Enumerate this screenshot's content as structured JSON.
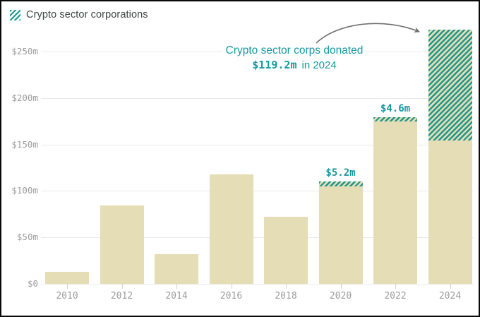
{
  "legend": {
    "label": "Crypto sector corporations",
    "swatch_style": "teal-diagonal-hatch",
    "swatch_color": "#1b978f"
  },
  "colors": {
    "bar_fill": "#e4ddb5",
    "hatch_teal": "#1e968c",
    "label_teal": "#14989d",
    "axis_text": "#9c9c9c",
    "title_text": "#3f4545",
    "gridline": "#e9e9ec",
    "arrow": "#6e6e6e",
    "frame_border": "#0a0a0a"
  },
  "annotation": {
    "line1": "Crypto sector corps donated",
    "amount": "$119.2m",
    "suffix": "in 2024"
  },
  "bar_labels": [
    {
      "year": "2020",
      "text": "$5.2m"
    },
    {
      "year": "2022",
      "text": "$4.6m"
    }
  ],
  "y_axis": {
    "ticks": [
      "$250m",
      "$200m",
      "$150m",
      "$100m",
      "$50m",
      "$0"
    ],
    "values": [
      250,
      200,
      150,
      100,
      50,
      0
    ]
  },
  "x_axis": {
    "ticks": [
      "2010",
      "2012",
      "2014",
      "2016",
      "2018",
      "2020",
      "2022",
      "2024"
    ]
  },
  "chart_data": {
    "type": "bar",
    "stacked": true,
    "title": "Crypto sector corporations",
    "categories": [
      "2010",
      "2012",
      "2014",
      "2016",
      "2018",
      "2020",
      "2022",
      "2024"
    ],
    "series": [
      {
        "name": "base",
        "style": "solid",
        "color": "#e4ddb5",
        "values": [
          13,
          84,
          32,
          118,
          72,
          105,
          175,
          154
        ]
      },
      {
        "name": "Crypto sector corporations",
        "style": "hatched",
        "color": "#1e968c",
        "values": [
          0,
          0,
          0,
          0,
          0,
          5.2,
          4.6,
          119.2
        ]
      }
    ],
    "y_unit": "$m",
    "ylim": [
      0,
      275
    ],
    "ytick_step": 50,
    "grid": true,
    "legend_position": "top-left",
    "annotations": [
      {
        "text": "Crypto sector corps donated $119.2m in 2024",
        "target": "2024"
      },
      {
        "text": "$5.2m",
        "target": "2020"
      },
      {
        "text": "$4.6m",
        "target": "2022"
      }
    ]
  }
}
